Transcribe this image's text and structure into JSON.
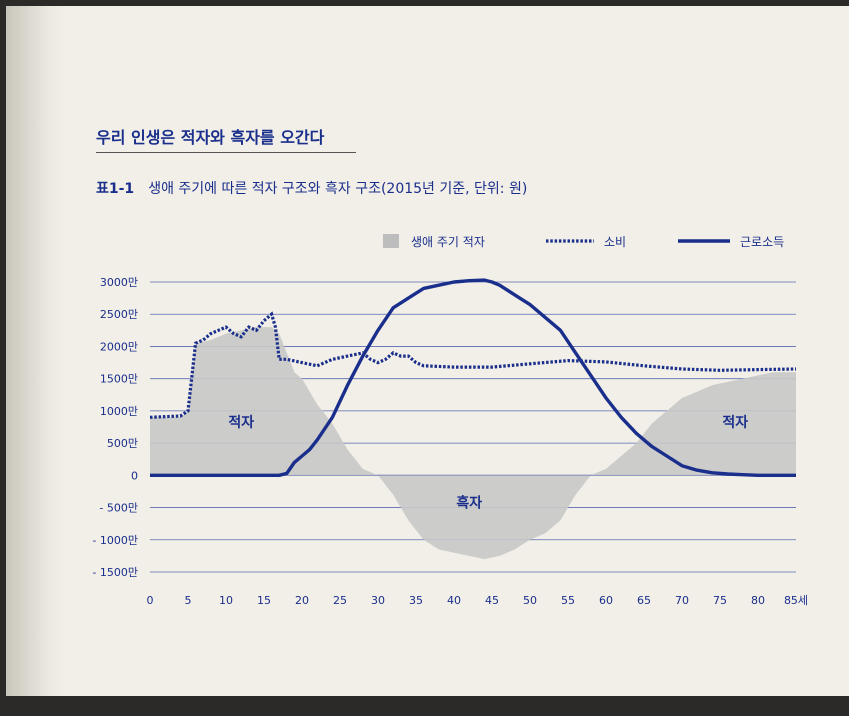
{
  "section_title": "우리 인생은 적자와 흑자를 오간다",
  "figure": {
    "number": "표1-1",
    "caption": "생애 주기에 따른 적자 구조와 흑자 구조(2015년 기준, 단위: 원)"
  },
  "colors": {
    "navy": "#1a2e8c",
    "area": "#c8c8c8",
    "grid": "#5a6ab0"
  },
  "chart_data": {
    "type": "line",
    "x_unit": "세",
    "y_unit": "만",
    "xlim": [
      0,
      85
    ],
    "ylim": [
      -1500,
      3000
    ],
    "x_ticks": [
      0,
      5,
      10,
      15,
      20,
      25,
      30,
      35,
      40,
      45,
      50,
      55,
      60,
      65,
      70,
      75,
      80,
      85
    ],
    "x_tick_labels": [
      "0",
      "5",
      "10",
      "15",
      "20",
      "25",
      "30",
      "35",
      "40",
      "45",
      "50",
      "55",
      "60",
      "65",
      "70",
      "75",
      "80",
      "85세"
    ],
    "y_ticks": [
      3000,
      2500,
      2000,
      1500,
      1000,
      500,
      0,
      -500,
      -1000,
      -1500
    ],
    "y_tick_labels": [
      "3000만",
      "2500만",
      "2000만",
      "1500만",
      "1000만",
      "500만",
      "0",
      "- 500만",
      "- 1000만",
      "- 1500만"
    ],
    "grid": true,
    "legend": {
      "position": "top-right",
      "items": [
        {
          "label": "생애 주기 적자",
          "kind": "area"
        },
        {
          "label": "소비",
          "kind": "dotted"
        },
        {
          "label": "근로소득",
          "kind": "solid"
        }
      ]
    },
    "annotations": [
      {
        "text": "적자",
        "x": 12,
        "y": 750
      },
      {
        "text": "흑자",
        "x": 42,
        "y": -500
      },
      {
        "text": "적자",
        "x": 77,
        "y": 750
      }
    ],
    "series": [
      {
        "name": "생애 주기 적자",
        "style": "area",
        "x": [
          0,
          4,
          5,
          6,
          8,
          10,
          12,
          14,
          16,
          17,
          18,
          19,
          20,
          22,
          24,
          26,
          28,
          30,
          32,
          34,
          36,
          38,
          40,
          42,
          44,
          46,
          48,
          50,
          52,
          54,
          56,
          58,
          60,
          62,
          64,
          66,
          68,
          70,
          72,
          74,
          76,
          78,
          80,
          82,
          85
        ],
        "y": [
          900,
          900,
          1000,
          2050,
          2100,
          2200,
          2250,
          2300,
          2300,
          2200,
          1900,
          1600,
          1500,
          1100,
          800,
          400,
          100,
          0,
          -300,
          -700,
          -1000,
          -1150,
          -1200,
          -1250,
          -1300,
          -1250,
          -1150,
          -1000,
          -900,
          -700,
          -300,
          0,
          100,
          300,
          500,
          800,
          1000,
          1200,
          1300,
          1400,
          1450,
          1500,
          1550,
          1600,
          1600
        ]
      },
      {
        "name": "소비",
        "style": "dotted",
        "x": [
          0,
          4,
          5,
          6,
          7,
          8,
          9,
          10,
          11,
          12,
          13,
          14,
          15,
          16,
          16.5,
          17,
          18,
          20,
          22,
          24,
          26,
          28,
          29,
          30,
          31,
          32,
          33,
          34,
          35,
          36,
          40,
          45,
          50,
          55,
          60,
          65,
          70,
          75,
          80,
          85
        ],
        "y": [
          900,
          920,
          1000,
          2050,
          2100,
          2200,
          2250,
          2300,
          2200,
          2150,
          2300,
          2250,
          2400,
          2500,
          2300,
          1800,
          1800,
          1750,
          1700,
          1800,
          1850,
          1900,
          1800,
          1750,
          1800,
          1900,
          1850,
          1850,
          1750,
          1700,
          1680,
          1680,
          1730,
          1780,
          1760,
          1700,
          1650,
          1630,
          1640,
          1650
        ]
      },
      {
        "name": "근로소득",
        "style": "solid",
        "x": [
          0,
          17,
          18,
          19,
          20,
          21,
          22,
          24,
          26,
          28,
          30,
          32,
          34,
          36,
          38,
          40,
          42,
          44,
          45,
          46,
          48,
          50,
          52,
          54,
          56,
          58,
          60,
          62,
          64,
          66,
          68,
          70,
          72,
          74,
          76,
          78,
          80,
          85
        ],
        "y": [
          0,
          0,
          30,
          200,
          300,
          400,
          550,
          900,
          1400,
          1850,
          2250,
          2600,
          2750,
          2900,
          2950,
          3000,
          3020,
          3030,
          3000,
          2950,
          2800,
          2650,
          2450,
          2250,
          1900,
          1550,
          1200,
          900,
          650,
          450,
          300,
          150,
          80,
          40,
          20,
          10,
          0,
          0
        ]
      }
    ]
  }
}
